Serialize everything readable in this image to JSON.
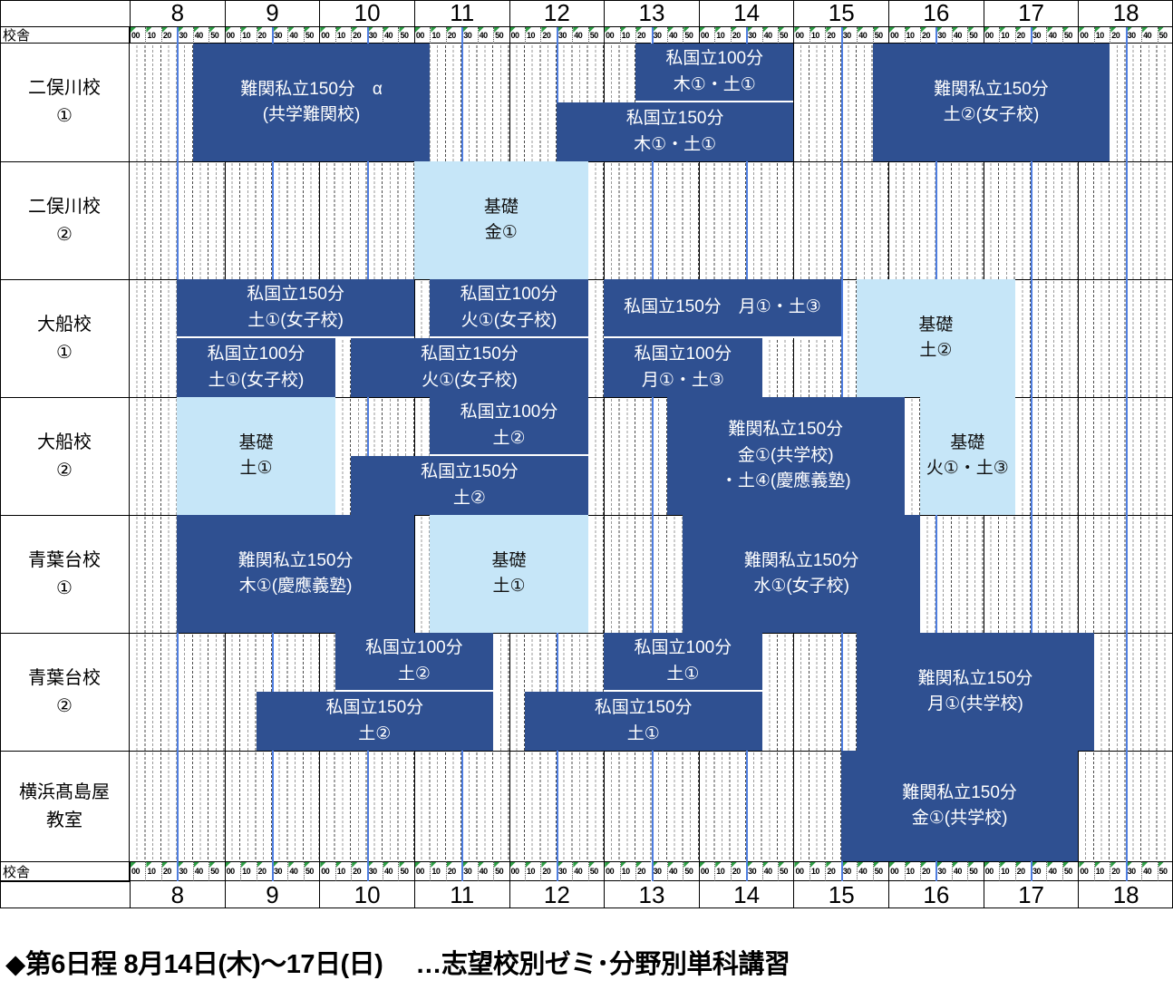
{
  "axis": {
    "corner_label": "校舎",
    "hours": [
      "8",
      "9",
      "10",
      "11",
      "12",
      "13",
      "14",
      "15",
      "16",
      "17",
      "18"
    ],
    "minutes": [
      "00",
      "10",
      "20",
      "30",
      "40",
      "50"
    ]
  },
  "footer": "◆第6日程  8月14日(木)～17日(日)　 …志望校別ゼミ･分野別単科講習",
  "colors": {
    "dark_block": "#2f5091",
    "light_block": "#c6e6f8",
    "half_hour_line": "#4f7ee0",
    "hour_line": "#000000",
    "green_flag": "#2e9e45"
  },
  "chart_data": {
    "type": "table",
    "timeline": {
      "start": "8:00",
      "end": "19:00",
      "minor_tick_min": 10
    },
    "legend_note": "dark = 志望校別ゼミ, light = 基礎",
    "rows": [
      {
        "campus_lines": [
          "二俣川校",
          "①"
        ],
        "blocks": [
          {
            "lines": [
              "難関私立150分　α",
              "(共学難関校)"
            ],
            "start": "8:40",
            "end": "11:10",
            "shade": "dark",
            "pos": "full"
          },
          {
            "lines": [
              "私国立100分",
              "木①・土①"
            ],
            "start": "13:20",
            "end": "15:00",
            "shade": "dark",
            "pos": "upper"
          },
          {
            "lines": [
              "私国立150分",
              "木①・土①"
            ],
            "start": "12:30",
            "end": "15:00",
            "shade": "dark",
            "pos": "lower"
          },
          {
            "lines": [
              "難関私立150分",
              "土②(女子校)"
            ],
            "start": "15:50",
            "end": "18:20",
            "shade": "dark",
            "pos": "full"
          }
        ]
      },
      {
        "campus_lines": [
          "二俣川校",
          "②"
        ],
        "blocks": [
          {
            "lines": [
              "基礎",
              "金①"
            ],
            "start": "11:00",
            "end": "12:50",
            "shade": "light",
            "pos": "full"
          }
        ]
      },
      {
        "campus_lines": [
          "大船校",
          "①"
        ],
        "blocks": [
          {
            "lines": [
              "私国立150分",
              "土①(女子校)"
            ],
            "start": "8:30",
            "end": "11:00",
            "shade": "dark",
            "pos": "upper"
          },
          {
            "lines": [
              "私国立100分",
              "土①(女子校)"
            ],
            "start": "8:30",
            "end": "10:10",
            "shade": "dark",
            "pos": "lower"
          },
          {
            "lines": [
              "私国立100分",
              "火①(女子校)"
            ],
            "start": "11:10",
            "end": "12:50",
            "shade": "dark",
            "pos": "upper"
          },
          {
            "lines": [
              "私国立150分",
              "火①(女子校)"
            ],
            "start": "10:20",
            "end": "12:50",
            "shade": "dark",
            "pos": "lower"
          },
          {
            "lines": [
              "私国立150分　月①・土③"
            ],
            "start": "13:00",
            "end": "15:30",
            "shade": "dark",
            "pos": "upper"
          },
          {
            "lines": [
              "私国立100分",
              "月①・土③"
            ],
            "start": "13:00",
            "end": "14:40",
            "shade": "dark",
            "pos": "lower"
          },
          {
            "lines": [
              "基礎",
              "土②"
            ],
            "start": "15:40",
            "end": "17:20",
            "shade": "light",
            "pos": "full"
          }
        ]
      },
      {
        "campus_lines": [
          "大船校",
          "②"
        ],
        "blocks": [
          {
            "lines": [
              "基礎",
              "土①"
            ],
            "start": "8:30",
            "end": "10:10",
            "shade": "light",
            "pos": "full"
          },
          {
            "lines": [
              "私国立100分",
              "土②"
            ],
            "start": "11:10",
            "end": "12:50",
            "shade": "dark",
            "pos": "upper"
          },
          {
            "lines": [
              "私国立150分",
              "土②"
            ],
            "start": "10:20",
            "end": "12:50",
            "shade": "dark",
            "pos": "lower"
          },
          {
            "lines": [
              "難関私立150分",
              "金①(共学校)",
              "・土④(慶應義塾)"
            ],
            "start": "13:40",
            "end": "16:10",
            "shade": "dark",
            "pos": "full"
          },
          {
            "lines": [
              "基礎",
              "火①・土③"
            ],
            "start": "16:20",
            "end": "17:20",
            "shade": "light",
            "pos": "full"
          }
        ]
      },
      {
        "campus_lines": [
          "青葉台校",
          "①"
        ],
        "blocks": [
          {
            "lines": [
              "難関私立150分",
              "木①(慶應義塾)"
            ],
            "start": "8:30",
            "end": "11:00",
            "shade": "dark",
            "pos": "full"
          },
          {
            "lines": [
              "基礎",
              "土①"
            ],
            "start": "11:10",
            "end": "12:50",
            "shade": "light",
            "pos": "full"
          },
          {
            "lines": [
              "難関私立150分",
              "水①(女子校)"
            ],
            "start": "13:50",
            "end": "16:20",
            "shade": "dark",
            "pos": "full"
          }
        ]
      },
      {
        "campus_lines": [
          "青葉台校",
          "②"
        ],
        "blocks": [
          {
            "lines": [
              "私国立100分",
              "土②"
            ],
            "start": "10:10",
            "end": "11:50",
            "shade": "dark",
            "pos": "upper"
          },
          {
            "lines": [
              "私国立150分",
              "土②"
            ],
            "start": "9:20",
            "end": "11:50",
            "shade": "dark",
            "pos": "lower"
          },
          {
            "lines": [
              "私国立100分",
              "土①"
            ],
            "start": "13:00",
            "end": "14:40",
            "shade": "dark",
            "pos": "upper"
          },
          {
            "lines": [
              "私国立150分",
              "土①"
            ],
            "start": "12:10",
            "end": "14:40",
            "shade": "dark",
            "pos": "lower"
          },
          {
            "lines": [
              "難関私立150分",
              "月①(共学校)"
            ],
            "start": "15:40",
            "end": "18:10",
            "shade": "dark",
            "pos": "full"
          }
        ]
      },
      {
        "campus_lines": [
          "横浜髙島屋",
          "教室"
        ],
        "blocks": [
          {
            "lines": [
              "難関私立150分",
              "金①(共学校)"
            ],
            "start": "15:30",
            "end": "18:00",
            "shade": "dark",
            "pos": "full"
          }
        ]
      }
    ]
  }
}
